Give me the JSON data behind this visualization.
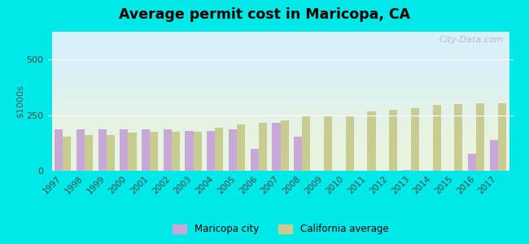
{
  "title": "Average permit cost in Maricopa, CA",
  "ylabel": "$1000s",
  "years": [
    1997,
    1998,
    1999,
    2000,
    2001,
    2002,
    2003,
    2004,
    2005,
    2006,
    2007,
    2008,
    2009,
    2010,
    2011,
    2012,
    2013,
    2014,
    2015,
    2016,
    2017
  ],
  "maricopa": [
    185,
    185,
    185,
    185,
    185,
    185,
    180,
    180,
    185,
    100,
    215,
    155,
    0,
    0,
    0,
    0,
    5,
    0,
    0,
    75,
    140
  ],
  "california": [
    155,
    160,
    160,
    170,
    175,
    175,
    175,
    195,
    210,
    215,
    225,
    250,
    248,
    250,
    268,
    275,
    280,
    295,
    300,
    305,
    305
  ],
  "maricopa_color": "#c8a8d8",
  "california_color": "#c8cc90",
  "bg_top_color": "#d8f0f8",
  "bg_bottom_color": "#e8f4e0",
  "outer_bg_color": "#00e8e8",
  "ylim": [
    0,
    625
  ],
  "yticks": [
    0,
    250,
    500
  ],
  "bar_width": 0.38,
  "legend_maricopa": "Maricopa city",
  "legend_california": "California average",
  "watermark": "City-Data.com"
}
